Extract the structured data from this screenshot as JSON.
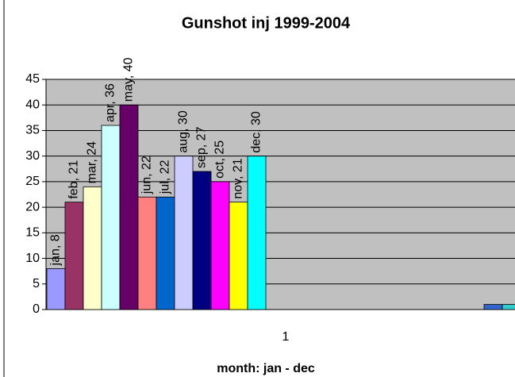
{
  "chart_data": {
    "type": "bar",
    "title": "Gunshot inj 1999-2004",
    "x_label": "month: jan - dec",
    "categories": [
      "1",
      null
    ],
    "series": [
      {
        "color": "#9999ff",
        "values": [
          8,
          null
        ],
        "value_labels": [
          "jan, 8",
          null
        ]
      },
      {
        "color": "#993366",
        "values": [
          21,
          null
        ],
        "value_labels": [
          "feb, 21",
          null
        ]
      },
      {
        "color": "#ffffcc",
        "values": [
          24,
          null
        ],
        "value_labels": [
          "mar, 24",
          null
        ]
      },
      {
        "color": "#ccffff",
        "values": [
          36,
          null
        ],
        "value_labels": [
          "apr, 36",
          null
        ]
      },
      {
        "color": "#660066",
        "values": [
          40,
          null
        ],
        "value_labels": [
          "may, 40",
          null
        ]
      },
      {
        "color": "#ff8080",
        "values": [
          22,
          null
        ],
        "value_labels": [
          "jun, 22",
          null
        ]
      },
      {
        "color": "#0066cc",
        "values": [
          22,
          null
        ],
        "value_labels": [
          "jul, 22",
          null
        ]
      },
      {
        "color": "#ccccff",
        "values": [
          30,
          null
        ],
        "value_labels": [
          "aug, 30",
          null
        ]
      },
      {
        "color": "#000080",
        "values": [
          27,
          null
        ],
        "value_labels": [
          "sep, 27",
          null
        ]
      },
      {
        "color": "#ff00ff",
        "values": [
          25,
          null
        ],
        "value_labels": [
          "oct, 25",
          null
        ]
      },
      {
        "color": "#ffff00",
        "values": [
          21,
          null
        ],
        "value_labels": [
          "nov, 21",
          null
        ]
      },
      {
        "color": "#00ffff",
        "values": [
          30,
          null
        ],
        "value_labels": [
          "dec, 30",
          null
        ]
      },
      {
        "color": "#3366cc",
        "values": [
          null,
          1
        ]
      },
      {
        "color": "#33cccc",
        "values": [
          null,
          1
        ]
      }
    ],
    "ylim": [
      0,
      45
    ],
    "yticks": [
      0,
      5,
      10,
      15,
      20,
      25,
      30,
      35,
      40,
      45
    ],
    "grid": true
  }
}
